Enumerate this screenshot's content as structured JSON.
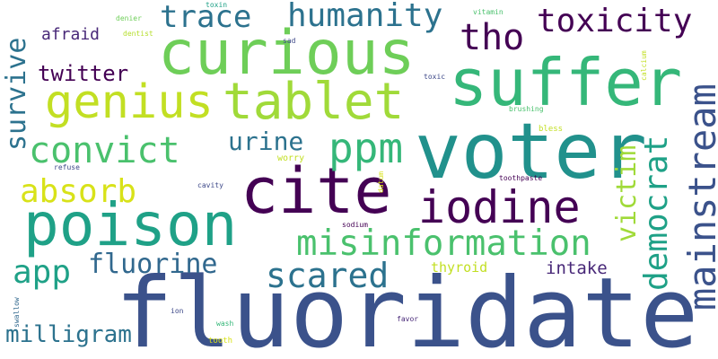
{
  "words": [
    {
      "text": "fluoridate",
      "color": "#3b528b"
    },
    {
      "text": "suffer",
      "color": "#35b779"
    },
    {
      "text": "voter",
      "color": "#21918c"
    },
    {
      "text": "curious",
      "color": "#6ece58"
    },
    {
      "text": "cite",
      "color": "#440154"
    },
    {
      "text": "poison",
      "color": "#1fa187"
    },
    {
      "text": "tablet",
      "color": "#a0da39"
    },
    {
      "text": "genius",
      "color": "#c2df23"
    },
    {
      "text": "mainstream",
      "color": "#3b528b"
    },
    {
      "text": "iodine",
      "color": "#440154"
    },
    {
      "text": "ppm",
      "color": "#35b779"
    },
    {
      "text": "misinformation",
      "color": "#4ac16d"
    },
    {
      "text": "convict",
      "color": "#4ac16d"
    },
    {
      "text": "toxicity",
      "color": "#440154"
    },
    {
      "text": "humanity",
      "color": "#2c728e"
    },
    {
      "text": "trace",
      "color": "#2c728e"
    },
    {
      "text": "democrat",
      "color": "#1fa187"
    },
    {
      "text": "tho",
      "color": "#440154"
    },
    {
      "text": "absorb",
      "color": "#d8e219"
    },
    {
      "text": "scared",
      "color": "#2c728e"
    },
    {
      "text": "app",
      "color": "#1fa187"
    },
    {
      "text": "fluorine",
      "color": "#31688e"
    },
    {
      "text": "victim",
      "color": "#a0da39"
    },
    {
      "text": "survive",
      "color": "#2c728e"
    },
    {
      "text": "urine",
      "color": "#2c728e"
    },
    {
      "text": "milligram",
      "color": "#2c728e"
    },
    {
      "text": "twitter",
      "color": "#440154"
    },
    {
      "text": "intake",
      "color": "#482878"
    },
    {
      "text": "afraid",
      "color": "#482878"
    },
    {
      "text": "thyroid",
      "color": "#c2df23"
    },
    {
      "text": "toothpaste",
      "color": "#440154"
    },
    {
      "text": "worry",
      "color": "#c2df23"
    },
    {
      "text": "sodium",
      "color": "#440154"
    },
    {
      "text": "brushing",
      "color": "#4ac16d"
    },
    {
      "text": "toxic",
      "color": "#3e4989"
    },
    {
      "text": "bless",
      "color": "#c2df23"
    },
    {
      "text": "calcium",
      "color": "#c2df23"
    },
    {
      "text": "vitamin",
      "color": "#4ac16d"
    },
    {
      "text": "sad",
      "color": "#3e4989"
    },
    {
      "text": "dentist",
      "color": "#b5de2b"
    },
    {
      "text": "denier",
      "color": "#6ece58"
    },
    {
      "text": "toxin",
      "color": "#1fa187"
    },
    {
      "text": "refuse",
      "color": "#3e4989"
    },
    {
      "text": "cavity",
      "color": "#3e4989"
    },
    {
      "text": "datum",
      "color": "#d8e219"
    },
    {
      "text": "swallow",
      "color": "#31688e"
    },
    {
      "text": "ion",
      "color": "#3e4989"
    },
    {
      "text": "wash",
      "color": "#35b779"
    },
    {
      "text": "favor",
      "color": "#482878"
    },
    {
      "text": "tooth",
      "color": "#d8e219"
    }
  ]
}
